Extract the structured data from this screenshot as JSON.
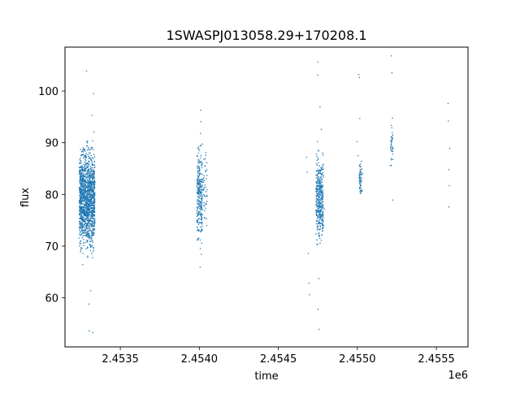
{
  "chart_data": {
    "type": "scatter",
    "title": "1SWASPJ013058.29+170208.1",
    "xlabel": "time",
    "ylabel": "flux",
    "x_offset_label": "1e6",
    "xlim": [
      2453150,
      2455700
    ],
    "ylim": [
      50.5,
      108.5
    ],
    "x_ticks": [
      2453500,
      2454000,
      2454500,
      2455000,
      2455500
    ],
    "x_tick_labels": [
      "2.4535",
      "2.4540",
      "2.4545",
      "2.4550",
      "2.4555"
    ],
    "y_ticks": [
      60,
      70,
      80,
      90,
      100
    ],
    "y_tick_labels": [
      "60",
      "70",
      "80",
      "90",
      "100"
    ],
    "grid": false,
    "legend": "none",
    "marker_color": "#1f77b4",
    "series": [
      {
        "points": [
          [
            2453245,
            85.2
          ],
          [
            2453252,
            78.4
          ],
          [
            2453258,
            82.9
          ],
          [
            2453266,
            73.1
          ],
          [
            2453274,
            88.6
          ],
          [
            2453281,
            80.2
          ],
          [
            2453289,
            76.5
          ],
          [
            2453296,
            84.7
          ],
          [
            2453304,
            71.8
          ],
          [
            2453312,
            86.9
          ],
          [
            2453318,
            79.3
          ],
          [
            2453325,
            90.4
          ],
          [
            2453248,
            68.9
          ],
          [
            2453262,
            66.4
          ],
          [
            2453284,
            72.6
          ],
          [
            2453299,
            74.8
          ],
          [
            2453308,
            81.7
          ],
          [
            2453315,
            89.1
          ],
          [
            2453322,
            83.5
          ],
          [
            2453255,
            76.0
          ],
          [
            2453270,
            87.3
          ],
          [
            2453292,
            69.8
          ],
          [
            2453286,
            103.9
          ],
          [
            2453301,
            58.8
          ],
          [
            2453312,
            61.4
          ],
          [
            2453304,
            53.6
          ],
          [
            2453327,
            53.3
          ],
          [
            2453331,
            99.5
          ],
          [
            2453333,
            92.1
          ],
          [
            2453320,
            95.3
          ],
          [
            2453993,
            86.7
          ],
          [
            2453998,
            80.1
          ],
          [
            2454004,
            74.5
          ],
          [
            2454009,
            84.0
          ],
          [
            2454014,
            70.6
          ],
          [
            2453996,
            89.2
          ],
          [
            2454002,
            77.3
          ],
          [
            2454007,
            91.8
          ],
          [
            2454012,
            68.4
          ],
          [
            2454005,
            65.9
          ],
          [
            2454008,
            96.3
          ],
          [
            2454010,
            94.1
          ],
          [
            2454029,
            83.2
          ],
          [
            2454034,
            75.4
          ],
          [
            2454041,
            88.1
          ],
          [
            2454046,
            74.0
          ],
          [
            2454038,
            79.6
          ],
          [
            2454678,
            87.2
          ],
          [
            2454682,
            84.3
          ],
          [
            2454690,
            68.6
          ],
          [
            2454695,
            62.8
          ],
          [
            2454697,
            60.6
          ],
          [
            2454742,
            84.6
          ],
          [
            2454746,
            79.2
          ],
          [
            2454750,
            73.5
          ],
          [
            2454754,
            88.4
          ],
          [
            2454758,
            71.9
          ],
          [
            2454762,
            82.7
          ],
          [
            2454766,
            76.1
          ],
          [
            2454748,
            90.2
          ],
          [
            2454760,
            85.5
          ],
          [
            2454756,
            63.7
          ],
          [
            2454752,
            57.8
          ],
          [
            2454758,
            53.9
          ],
          [
            2454750,
            105.6
          ],
          [
            2454749,
            103.1
          ],
          [
            2454764,
            96.9
          ],
          [
            2454768,
            80.4
          ],
          [
            2454772,
            92.6
          ],
          [
            2454785,
            84.9
          ],
          [
            2454790,
            77.2
          ],
          [
            2454998,
            90.2
          ],
          [
            2455004,
            87.5
          ],
          [
            2455012,
            82.6
          ],
          [
            2455018,
            81.2
          ],
          [
            2455021,
            80.3
          ],
          [
            2455024,
            83.8
          ],
          [
            2455015,
            94.7
          ],
          [
            2455009,
            103.2
          ],
          [
            2455013,
            102.6
          ],
          [
            2455026,
            86.4
          ],
          [
            2455208,
            85.6
          ],
          [
            2455212,
            88.7
          ],
          [
            2455217,
            90.9
          ],
          [
            2455222,
            94.8
          ],
          [
            2455215,
            106.8
          ],
          [
            2455219,
            103.5
          ],
          [
            2455224,
            78.9
          ],
          [
            2455574,
            97.6
          ],
          [
            2455576,
            94.2
          ],
          [
            2455579,
            84.8
          ],
          [
            2455582,
            81.7
          ],
          [
            2455578,
            77.6
          ],
          [
            2455584,
            88.9
          ]
        ]
      }
    ],
    "clusters": [
      {
        "x_range": [
          2453240,
          2453340
        ],
        "y_range": [
          66,
          92
        ],
        "count": 1400
      },
      {
        "x_range": [
          2453985,
          2454020
        ],
        "y_range": [
          68,
          92
        ],
        "count": 260
      },
      {
        "x_range": [
          2454025,
          2454050
        ],
        "y_range": [
          73,
          90
        ],
        "count": 40
      },
      {
        "x_range": [
          2454738,
          2454785
        ],
        "y_range": [
          68,
          90
        ],
        "count": 380
      },
      {
        "x_range": [
          2455012,
          2455030
        ],
        "y_range": [
          79,
          87
        ],
        "count": 60
      },
      {
        "x_range": [
          2455210,
          2455225
        ],
        "y_range": [
          84,
          95
        ],
        "count": 30
      }
    ]
  }
}
